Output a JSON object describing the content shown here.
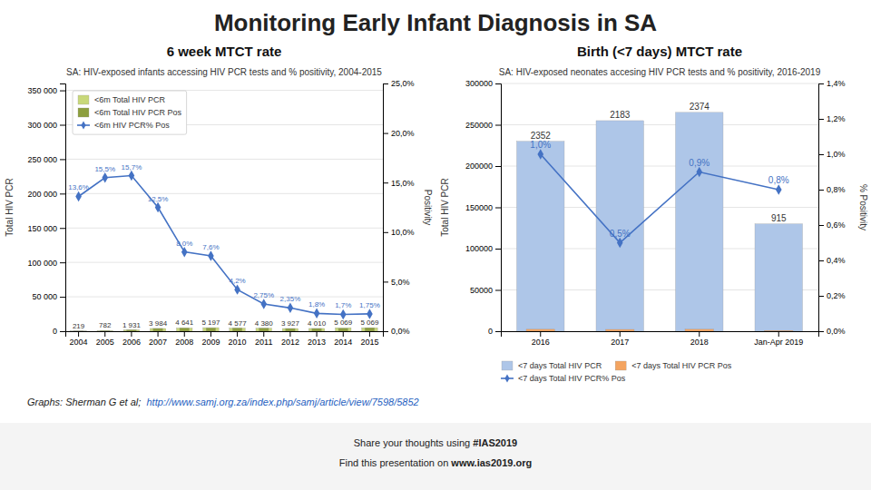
{
  "title": "Monitoring Early Infant Diagnosis in SA",
  "annotations": [
    [
      "Graphs: Sherman G et al;  ",
      "http://www.samj.org.za/index.php/samj/article/view/7598/5852"
    ],
    [
      "Share your thoughts using ",
      "#IAS2019"
    ],
    [
      "Find this presentation on ",
      "www.ias2019.org"
    ]
  ],
  "chart_data": [
    {
      "type": "bar",
      "subtitle": "6 week MTCT rate",
      "title": "SA: HIV-exposed infants accessing HIV PCR tests and % positivity, 2004-2015",
      "categories": [
        "2004",
        "2005",
        "2006",
        "2007",
        "2008",
        "2009",
        "2010",
        "2011",
        "2012",
        "2013",
        "2014",
        "2015"
      ],
      "ylabel": "Total HIV PCR",
      "y2label": "Positivity",
      "ylim": [
        0,
        360000
      ],
      "yticks": [
        0,
        {
          "value": 50000,
          "label": "50 000"
        },
        {
          "value": 100000,
          "label": "100 000"
        },
        {
          "value": 150000,
          "label": "150 000"
        },
        {
          "value": 200000,
          "label": "200 000"
        },
        {
          "value": 250000,
          "label": "250 000"
        },
        {
          "value": 300000,
          "label": "300 000"
        },
        {
          "value": 350000,
          "label": "350 000"
        }
      ],
      "y2lim": [
        0,
        25
      ],
      "y2ticks": [
        {
          "value": 0,
          "label": "0,0%"
        },
        {
          "value": 5,
          "label": "5,0%"
        },
        {
          "value": 10,
          "label": "10,0%"
        },
        {
          "value": 15,
          "label": "15,0%"
        },
        {
          "value": 20,
          "label": "20,0%"
        },
        {
          "value": 25,
          "label": "25,0%"
        }
      ],
      "grid": true,
      "legend": "upper left",
      "series": [
        {
          "name": "<6m Total HIV PCR",
          "type": "bar",
          "color": "#c8d87a",
          "values": [
            219,
            782,
            1931,
            3984,
            4641,
            5197,
            4577,
            4380,
            3927,
            4010,
            5069,
            5069
          ],
          "data_labels": true,
          "value_labels": [
            "219",
            "782",
            "1 931",
            "3 984",
            "4 641",
            "5 197",
            "4 577",
            "4 380",
            "3 927",
            "4 010",
            "5 069",
            "5 069"
          ]
        },
        {
          "name": "<6m Total HIV PCR Pos",
          "type": "bar",
          "color": "#8c9e3e",
          "values": [
            219,
            782,
            1931,
            3984,
            4641,
            4686,
            4577,
            4380,
            3927,
            3922,
            4010,
            5069
          ]
        },
        {
          "name": "<6m HIV PCR% Pos",
          "type": "line",
          "axis": "y2",
          "color": "#4472c4",
          "marker": "diamond",
          "values": [
            13.6,
            15.5,
            15.7,
            12.5,
            8.0,
            7.6,
            4.2,
            2.75,
            2.35,
            1.8,
            1.7,
            1.75
          ],
          "data_labels": true,
          "value_labels": [
            "13,6%",
            "15,5%",
            "15,7%",
            "12,5%",
            "8,0%",
            "7,6%",
            "4,2%",
            "2,75%",
            "2,35%",
            "1,8%",
            "1,7%",
            "1,75%"
          ]
        }
      ]
    },
    {
      "type": "bar",
      "subtitle": "Birth (<7 days) MTCT rate",
      "title": "SA: HIV-exposed neonates accesing HIV PCR tests and % positivity, 2016-2019",
      "categories": [
        "2016",
        "2017",
        "2018",
        "Jan-Apr 2019"
      ],
      "ylabel": "Total HIV PCR",
      "y2label": "% Positivity",
      "ylim": [
        0,
        300000
      ],
      "yticks": [
        0,
        50000,
        100000,
        150000,
        200000,
        250000,
        300000
      ],
      "y2lim": [
        0,
        1.4
      ],
      "y2ticks": [
        {
          "value": 0,
          "label": "0,0%"
        },
        {
          "value": 0.2,
          "label": "0,2%"
        },
        {
          "value": 0.4,
          "label": "0,4%"
        },
        {
          "value": 0.6,
          "label": "0,6%"
        },
        {
          "value": 0.8,
          "label": "0,8%"
        },
        {
          "value": 1.0,
          "label": "1,0%"
        },
        {
          "value": 1.2,
          "label": "1,2%"
        },
        {
          "value": 1.4,
          "label": "1,4%"
        }
      ],
      "grid": true,
      "legend": "lower left",
      "series": [
        {
          "name": "<7 days Total HIV PCR",
          "type": "bar",
          "color": "#aec6e8",
          "values": [
            230000,
            255000,
            265000,
            130000
          ]
        },
        {
          "name": "<7 days Total HIV PCR Pos",
          "type": "bar",
          "color": "#f4a460",
          "values": [
            2352,
            2183,
            2374,
            915
          ],
          "data_labels": true
        },
        {
          "name": "<7 days Total HIV PCR% Pos",
          "type": "line",
          "axis": "y2",
          "color": "#4472c4",
          "marker": "diamond",
          "values": [
            1.0,
            0.5,
            0.9,
            0.8
          ],
          "data_labels": true,
          "value_labels": [
            "1,0%",
            "0,5%",
            "0,9%",
            "0,8%"
          ]
        }
      ]
    }
  ]
}
